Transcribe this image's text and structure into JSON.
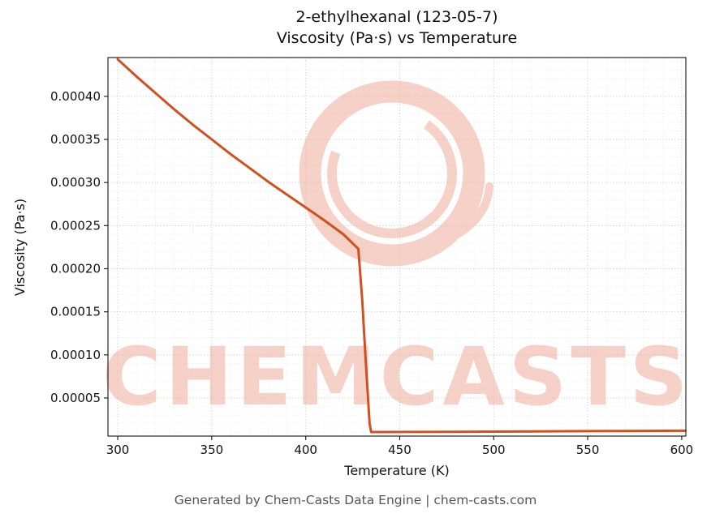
{
  "figure": {
    "footer": "Generated by Chem-Casts Data Engine | chem-casts.com"
  },
  "chart_data": {
    "type": "line",
    "title": "2-ethylhexanal (123-05-7)",
    "subtitle": "Viscosity (Pa·s) vs Temperature",
    "xlabel": "Temperature (K)",
    "ylabel": "Viscosity (Pa·s)",
    "xlim": [
      294.8,
      602.2
    ],
    "ylim": [
      5.8e-06,
      0.000445
    ],
    "x_ticks": [
      300,
      350,
      400,
      450,
      500,
      550,
      600
    ],
    "x_tick_labels": [
      "300",
      "350",
      "400",
      "450",
      "500",
      "550",
      "600"
    ],
    "y_ticks": [
      5e-05,
      0.0001,
      0.00015,
      0.0002,
      0.00025,
      0.0003,
      0.00035,
      0.0004
    ],
    "y_tick_labels": [
      "0.00005",
      "0.00010",
      "0.00015",
      "0.00020",
      "0.00025",
      "0.00030",
      "0.00035",
      "0.00040"
    ],
    "x_minor_step": 10,
    "y_minor_step": 1e-05,
    "grid": true,
    "legend": false,
    "line_color": "#d2501e",
    "line_width": 3,
    "series": [
      {
        "name": "viscosity",
        "x": [
          300,
          310,
          320,
          330,
          340,
          350,
          360,
          370,
          380,
          390,
          400,
          410,
          420,
          428,
          430,
          432,
          434,
          434.8,
          440,
          460,
          480,
          500,
          520,
          540,
          560,
          580,
          600,
          602
        ],
        "y": [
          0.000443,
          0.000423,
          0.000404,
          0.000385,
          0.000367,
          0.00035,
          0.000333,
          0.000317,
          0.000301,
          0.000286,
          0.000271,
          0.000256,
          0.00024,
          0.000223,
          0.000165,
          9e-05,
          2e-05,
          1.05e-05,
          1.05e-05,
          1.06e-05,
          1.07e-05,
          1.1e-05,
          1.12e-05,
          1.14e-05,
          1.16e-05,
          1.18e-05,
          1.2e-05,
          1.2e-05
        ]
      }
    ],
    "watermark": {
      "text": "CHEMCASTS",
      "color": "#f0ad9b"
    }
  }
}
